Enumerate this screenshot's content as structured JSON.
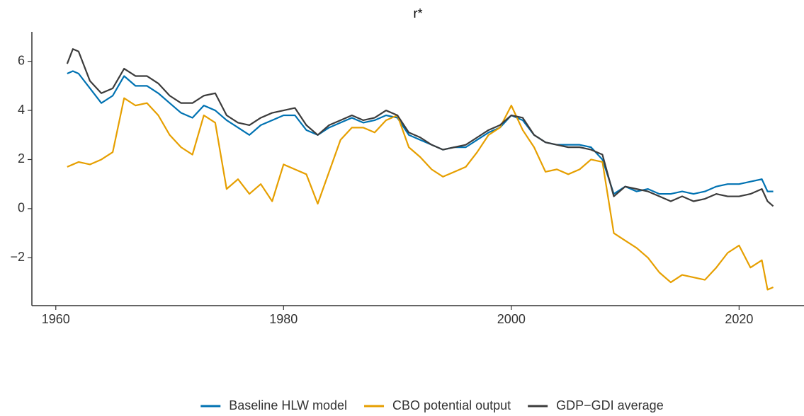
{
  "chart_data": {
    "type": "line",
    "title": "r*",
    "x": [
      1961,
      1961.5,
      1962,
      1963,
      1964,
      1965,
      1966,
      1967,
      1968,
      1969,
      1970,
      1971,
      1972,
      1973,
      1974,
      1975,
      1976,
      1977,
      1978,
      1979,
      1980,
      1981,
      1982,
      1983,
      1984,
      1985,
      1986,
      1987,
      1988,
      1989,
      1990,
      1991,
      1992,
      1993,
      1994,
      1995,
      1996,
      1997,
      1998,
      1999,
      2000,
      2001,
      2002,
      2003,
      2004,
      2005,
      2006,
      2007,
      2008,
      2009,
      2010,
      2011,
      2012,
      2013,
      2014,
      2015,
      2016,
      2017,
      2018,
      2019,
      2020,
      2021,
      2022,
      2022.5,
      2023
    ],
    "series": [
      {
        "name": "Baseline HLW model",
        "color": "#0072B2",
        "values": [
          5.5,
          5.6,
          5.5,
          4.9,
          4.3,
          4.6,
          5.4,
          5.0,
          5.0,
          4.7,
          4.3,
          3.9,
          3.7,
          4.2,
          4.0,
          3.6,
          3.3,
          3.0,
          3.4,
          3.6,
          3.8,
          3.8,
          3.2,
          3.0,
          3.3,
          3.5,
          3.7,
          3.5,
          3.6,
          3.8,
          3.7,
          3.0,
          2.8,
          2.6,
          2.4,
          2.5,
          2.5,
          2.8,
          3.1,
          3.3,
          3.8,
          3.6,
          3.0,
          2.7,
          2.6,
          2.6,
          2.6,
          2.5,
          2.0,
          0.6,
          0.9,
          0.7,
          0.8,
          0.6,
          0.6,
          0.7,
          0.6,
          0.7,
          0.9,
          1.0,
          1.0,
          1.1,
          1.2,
          0.7,
          0.7
        ]
      },
      {
        "name": "CBO potential output",
        "color": "#E69F00",
        "values": [
          1.7,
          1.8,
          1.9,
          1.8,
          2.0,
          2.3,
          4.5,
          4.2,
          4.3,
          3.8,
          3.0,
          2.5,
          2.2,
          3.8,
          3.5,
          0.8,
          1.2,
          0.6,
          1.0,
          0.3,
          1.8,
          1.6,
          1.4,
          0.2,
          1.5,
          2.8,
          3.3,
          3.3,
          3.1,
          3.6,
          3.8,
          2.5,
          2.1,
          1.6,
          1.3,
          1.5,
          1.7,
          2.3,
          3.0,
          3.3,
          4.2,
          3.2,
          2.5,
          1.5,
          1.6,
          1.4,
          1.6,
          2.0,
          1.9,
          -1.0,
          -1.3,
          -1.6,
          -2.0,
          -2.6,
          -3.0,
          -2.7,
          -2.8,
          -2.9,
          -2.4,
          -1.8,
          -1.5,
          -2.4,
          -2.1,
          -3.3,
          -3.2
        ]
      },
      {
        "name": "GDP−GDI average",
        "color": "#3C3C3C",
        "values": [
          5.9,
          6.5,
          6.4,
          5.2,
          4.7,
          4.9,
          5.7,
          5.4,
          5.4,
          5.1,
          4.6,
          4.3,
          4.3,
          4.6,
          4.7,
          3.8,
          3.5,
          3.4,
          3.7,
          3.9,
          4.0,
          4.1,
          3.4,
          3.0,
          3.4,
          3.6,
          3.8,
          3.6,
          3.7,
          4.0,
          3.8,
          3.1,
          2.9,
          2.6,
          2.4,
          2.5,
          2.6,
          2.9,
          3.2,
          3.4,
          3.8,
          3.7,
          3.0,
          2.7,
          2.6,
          2.5,
          2.5,
          2.4,
          2.2,
          0.5,
          0.9,
          0.8,
          0.7,
          0.5,
          0.3,
          0.5,
          0.3,
          0.4,
          0.6,
          0.5,
          0.5,
          0.6,
          0.8,
          0.3,
          0.1
        ]
      }
    ],
    "xlim": [
      1957.9,
      2025.7
    ],
    "xticks": [
      1960,
      1980,
      2000,
      2020
    ],
    "ylim": [
      -3.95,
      7.2
    ],
    "yticks": [
      {
        "value": -2,
        "label": "−2"
      },
      0,
      2,
      4,
      6
    ],
    "legend": "bottom"
  }
}
